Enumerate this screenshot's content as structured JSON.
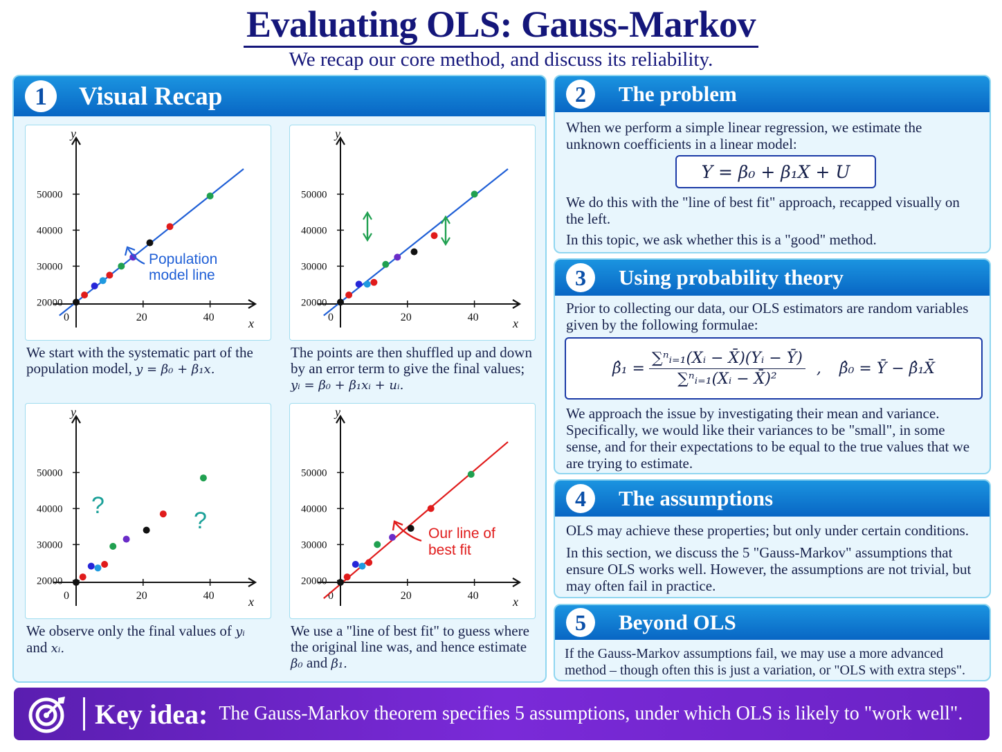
{
  "header": {
    "title": "Evaluating OLS: Gauss-Markov",
    "subtitle": "We recap our core method, and discuss its reliability."
  },
  "section1": {
    "number": "1",
    "title": "Visual Recap",
    "captions": [
      "We start with the systematic part of the population model,",
      "The points are then shuffled up and down by an error term to give the final values;",
      "We observe only the final values of",
      "We use a \"line of best fit\" to guess where the original line was, and hence estimate"
    ],
    "caption_math": {
      "c1": "y = β₀ + β₁x.",
      "c2": "yᵢ = β₀ + β₁xᵢ + uᵢ.",
      "c3_a": "yᵢ",
      "c3_and": "and",
      "c3_b": "xᵢ.",
      "c4_a": "β₀",
      "c4_and": "and",
      "c4_b": "β₁."
    },
    "annotations": {
      "population_line": [
        "Population",
        "model line"
      ],
      "best_fit": [
        "Our line of",
        "best fit"
      ],
      "question_mark": "?"
    }
  },
  "chart_data": [
    {
      "type": "scatter",
      "xlabel": "x",
      "ylabel": "y",
      "xlim": [
        0,
        50
      ],
      "ylim": [
        15000,
        55000
      ],
      "x_ticks": [
        "0",
        "20",
        "40"
      ],
      "y_ticks": [
        "20000",
        "30000",
        "40000",
        "50000"
      ],
      "points": [
        [
          0,
          20000
        ],
        [
          2.5,
          22000
        ],
        [
          5.5,
          24500
        ],
        [
          8,
          26000
        ],
        [
          10,
          27500
        ],
        [
          13.5,
          30000
        ],
        [
          17,
          32500
        ],
        [
          22,
          36500
        ],
        [
          28,
          41000
        ],
        [
          40,
          49500
        ]
      ],
      "line": {
        "intercept": 20000,
        "slope": 740,
        "color": "#1f5fd6"
      },
      "annotation": "Population model line"
    },
    {
      "type": "scatter",
      "xlabel": "x",
      "ylabel": "y",
      "xlim": [
        0,
        50
      ],
      "ylim": [
        15000,
        55000
      ],
      "x_ticks": [
        "0",
        "20",
        "40"
      ],
      "y_ticks": [
        "20000",
        "30000",
        "40000",
        "50000"
      ],
      "points": [
        [
          0,
          20000
        ],
        [
          2.5,
          22000
        ],
        [
          5.5,
          25000
        ],
        [
          8,
          25000
        ],
        [
          10,
          25500
        ],
        [
          13.5,
          30500
        ],
        [
          17,
          32500
        ],
        [
          22,
          34000
        ],
        [
          28,
          38500
        ],
        [
          40,
          50000
        ]
      ],
      "line": {
        "intercept": 20000,
        "slope": 740,
        "color": "#1f5fd6"
      }
    },
    {
      "type": "scatter",
      "xlabel": "x",
      "ylabel": "y",
      "xlim": [
        0,
        50
      ],
      "ylim": [
        15000,
        55000
      ],
      "x_ticks": [
        "0",
        "20",
        "40"
      ],
      "y_ticks": [
        "20000",
        "30000",
        "40000",
        "50000"
      ],
      "points": [
        [
          0,
          19500
        ],
        [
          2,
          21000
        ],
        [
          4.5,
          24000
        ],
        [
          6.5,
          23500
        ],
        [
          8.5,
          24500
        ],
        [
          11,
          29500
        ],
        [
          15,
          31500
        ],
        [
          21,
          34000
        ],
        [
          26,
          38500
        ],
        [
          38,
          48500
        ]
      ]
    },
    {
      "type": "scatter",
      "xlabel": "x",
      "ylabel": "y",
      "xlim": [
        0,
        50
      ],
      "ylim": [
        15000,
        55000
      ],
      "x_ticks": [
        "0",
        "20",
        "40"
      ],
      "y_ticks": [
        "20000",
        "30000",
        "40000",
        "50000"
      ],
      "points": [
        [
          0,
          19500
        ],
        [
          2,
          21000
        ],
        [
          4.5,
          24500
        ],
        [
          6.5,
          24000
        ],
        [
          8.5,
          25000
        ],
        [
          11,
          30000
        ],
        [
          15.5,
          32000
        ],
        [
          21,
          34500
        ],
        [
          27,
          40000
        ],
        [
          39,
          49500
        ]
      ],
      "line": {
        "intercept": 19000,
        "slope": 790,
        "color": "#e01b1b"
      },
      "annotation": "Our line of best fit"
    }
  ],
  "point_colors": [
    "#111111",
    "#e01b1b",
    "#2626d8",
    "#1f9ae0",
    "#e01b1b",
    "#20a050",
    "#6a2cc8",
    "#111111",
    "#e01b1b",
    "#20a050"
  ],
  "section2": {
    "number": "2",
    "title": "The problem",
    "text1": "When we perform a simple linear regression, we estimate the unknown coefficients in a linear model:",
    "formula": "Y = β₀ + β₁X + U",
    "text2": "We do this with the \"line of best fit\" approach, recapped visually on the left.",
    "text3": "In this topic, we ask whether this is a \"good\" method."
  },
  "section3": {
    "number": "3",
    "title": "Using probability theory",
    "text1": "Prior to collecting our data, our OLS estimators are random variables given by the following formulae:",
    "beta1_lhs": "β̂₁ =",
    "beta1_num": "∑ⁿᵢ₌₁(Xᵢ − X̄)(Yᵢ − Ȳ)",
    "beta1_den": "∑ⁿᵢ₌₁(Xᵢ − X̄)²",
    "sep": ",",
    "beta0": "β̂₀ = Ȳ − β̂₁X̄",
    "text2": "We approach the issue by investigating their mean and variance. Specifically, we would like their variances to be \"small\", in some sense, and for their expectations to be equal to the true values that we are trying to estimate."
  },
  "section4": {
    "number": "4",
    "title": "The assumptions",
    "text1": "OLS may achieve these properties; but only under certain conditions.",
    "text2": "In this section, we discuss the 5 \"Gauss-Markov\" assumptions that ensure OLS works well. However, the assumptions are not trivial, but may often fail in practice."
  },
  "section5": {
    "number": "5",
    "title": "Beyond OLS",
    "text1": "If the Gauss-Markov assumptions fail, we may use a more advanced method – though often this is just a variation, or \"OLS with extra steps\"."
  },
  "key_idea": {
    "icon": "target-icon",
    "label": "Key idea:",
    "text": "The Gauss-Markov theorem specifies 5 assumptions, under which OLS is likely to \"work well\"."
  }
}
